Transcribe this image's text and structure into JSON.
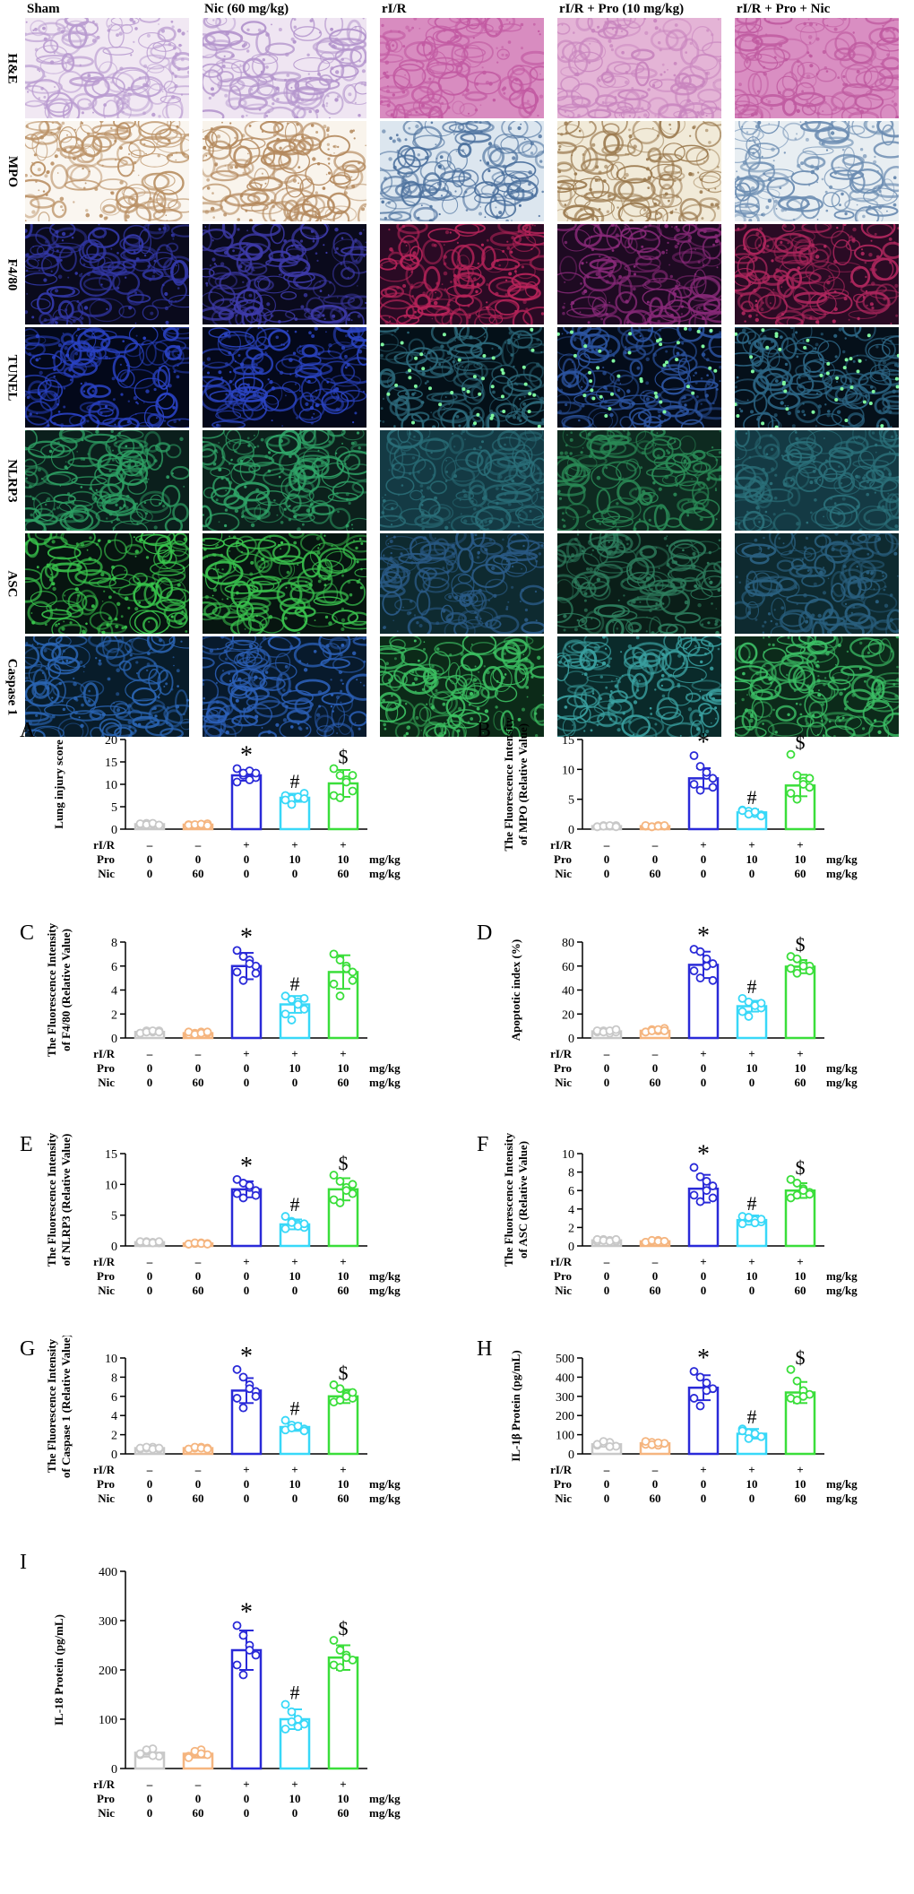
{
  "columns": [
    "Sham",
    "Nic (60 mg/kg)",
    "rI/R",
    "rI/R + Pro (10 mg/kg)",
    "rI/R + Pro + Nic"
  ],
  "rows": [
    {
      "label": "H&E",
      "bg": [
        "#f1e8f3",
        "#efe5f2",
        "#d88cc0",
        "#e4b4d6",
        "#d98ec2"
      ],
      "fg": [
        "#b99bd0",
        "#b394cc",
        "#c25aa2",
        "#c884be",
        "#bf5aa0"
      ]
    },
    {
      "label": "MPO",
      "bg": [
        "#faf6f0",
        "#f9f4ec",
        "#dce6ef",
        "#f1ead8",
        "#e8eef2"
      ],
      "fg": [
        "#b98f63",
        "#b3885c",
        "#4a6f9c",
        "#9b7a4f",
        "#6b8cb1"
      ]
    },
    {
      "label": "F4/80",
      "bg": [
        "#0a0a1c",
        "#0a0a1c",
        "#2a0a24",
        "#1e0a22",
        "#2a0b24"
      ],
      "fg": [
        "#3338a8",
        "#3d3aa8",
        "#b8245a",
        "#8a2a7a",
        "#b0275e"
      ]
    },
    {
      "label": "TUNEL",
      "bg": [
        "#03081a",
        "#04081a",
        "#041018",
        "#040c1a",
        "#05101a"
      ],
      "fg": [
        "#2a42c4",
        "#2b44c2",
        "#2d6a7c",
        "#2c54a0",
        "#2c6584"
      ]
    },
    {
      "label": "NLRP3",
      "bg": [
        "#0b1f1c",
        "#0c211c",
        "#143a44",
        "#0e2a20",
        "#143a44"
      ],
      "fg": [
        "#2ea064",
        "#30a468",
        "#2a6e78",
        "#2a8a56",
        "#2b707a"
      ]
    },
    {
      "label": "ASC",
      "bg": [
        "#071410",
        "#071510",
        "#0e2a30",
        "#0a1e18",
        "#0e2a30"
      ],
      "fg": [
        "#38c44c",
        "#3ac24e",
        "#2a5a86",
        "#2e7e5e",
        "#2a6080"
      ]
    },
    {
      "label": "Caspase 1",
      "bg": [
        "#081c2a",
        "#081a2c",
        "#0c2a18",
        "#0a2a2a",
        "#0c2a1a"
      ],
      "fg": [
        "#2a64b2",
        "#2c60b8",
        "#3cc062",
        "#3aa0a0",
        "#3cc066"
      ]
    }
  ],
  "colors": {
    "sham": "#c8c8c8",
    "nic": "#f5b57f",
    "rir": "#2a2ad8",
    "pro": "#38d8f8",
    "pronic": "#3ade3a"
  },
  "chart_data": [
    {
      "type": "bar",
      "letter": "A",
      "ylabel": "Lung injury score",
      "ylim": [
        0,
        20
      ],
      "ticks": [
        0,
        5,
        10,
        15,
        20
      ],
      "means": [
        1.1,
        1.0,
        12.0,
        7.0,
        10.2
      ],
      "err": [
        0.2,
        0.2,
        1.2,
        0.9,
        3.0
      ],
      "points": [
        [
          1.0,
          1.3,
          1.1,
          0.9,
          1.2,
          1.0,
          1.3,
          0.9
        ],
        [
          1.0,
          0.8,
          1.1,
          1.2,
          0.9,
          1.0,
          1.1,
          0.8
        ],
        [
          13.5,
          12.0,
          13.0,
          11.5,
          10.5,
          12.5,
          11.0,
          12.5
        ],
        [
          7.5,
          6.8,
          7.0,
          8.0,
          6.5,
          5.5,
          7.2,
          6.8
        ],
        [
          13.5,
          12.0,
          11.0,
          8.5,
          7.5,
          7.0,
          10.5,
          12.0
        ]
      ],
      "sig": [
        "",
        "",
        "*",
        "#",
        "$"
      ],
      "rows": [
        [
          "rI/R",
          "–",
          "–",
          "+",
          "+",
          "+",
          ""
        ],
        [
          "Pro",
          "0",
          "0",
          "0",
          "10",
          "10",
          "mg/kg"
        ],
        [
          "Nic",
          "0",
          "60",
          "0",
          "0",
          "60",
          "mg/kg"
        ]
      ]
    },
    {
      "type": "bar",
      "letter": "B",
      "ylabel": "The Fluorescence Intensity of MPO (Relative Value)",
      "ylim": [
        0,
        15
      ],
      "ticks": [
        0,
        5,
        10,
        15
      ],
      "means": [
        0.5,
        0.5,
        8.5,
        2.8,
        7.3
      ],
      "err": [
        0.15,
        0.15,
        1.7,
        0.5,
        1.8
      ],
      "points": [
        [
          0.4,
          0.6,
          0.5,
          0.6,
          0.4,
          0.5,
          0.6,
          0.4
        ],
        [
          0.5,
          0.4,
          0.6,
          0.5,
          0.6,
          0.4,
          0.5,
          0.6
        ],
        [
          12.3,
          10.5,
          9.0,
          8.5,
          7.5,
          6.5,
          9.5,
          7.0
        ],
        [
          3.2,
          3.0,
          2.6,
          2.4,
          3.1,
          2.5,
          2.9,
          2.2
        ],
        [
          12.5,
          9.0,
          8.0,
          7.0,
          6.0,
          5.0,
          7.5,
          8.5
        ]
      ],
      "sig": [
        "",
        "",
        "*",
        "#",
        "$"
      ],
      "rows": [
        [
          "rI/R",
          "–",
          "–",
          "+",
          "+",
          "+",
          ""
        ],
        [
          "Pro",
          "0",
          "0",
          "0",
          "10",
          "10",
          "mg/kg"
        ],
        [
          "Nic",
          "0",
          "60",
          "0",
          "0",
          "60",
          "mg/kg"
        ]
      ]
    },
    {
      "type": "bar",
      "letter": "C",
      "ylabel": "The Fluorescence Intensity of F4/80 (Relative Value)",
      "ylim": [
        0,
        8
      ],
      "ticks": [
        0,
        2,
        4,
        6,
        8
      ],
      "means": [
        0.5,
        0.4,
        6.0,
        2.8,
        5.5
      ],
      "err": [
        0.1,
        0.1,
        1.1,
        0.7,
        1.4
      ],
      "points": [
        [
          0.4,
          0.6,
          0.5,
          0.6,
          0.4,
          0.5,
          0.6,
          0.5
        ],
        [
          0.3,
          0.4,
          0.5,
          0.4,
          0.5,
          0.3,
          0.4,
          0.5
        ],
        [
          7.3,
          6.8,
          6.5,
          6.0,
          5.5,
          4.8,
          6.2,
          5.4
        ],
        [
          3.5,
          3.2,
          3.0,
          2.4,
          2.0,
          1.5,
          2.8,
          3.3
        ],
        [
          7.0,
          6.5,
          6.0,
          5.5,
          4.5,
          3.5,
          5.8,
          4.8
        ]
      ],
      "sig": [
        "",
        "",
        "*",
        "#",
        ""
      ],
      "rows": [
        [
          "rI/R",
          "–",
          "–",
          "+",
          "+",
          "+",
          ""
        ],
        [
          "Pro",
          "0",
          "0",
          "0",
          "10",
          "10",
          "mg/kg"
        ],
        [
          "Nic",
          "0",
          "60",
          "0",
          "0",
          "60",
          "mg/kg"
        ]
      ]
    },
    {
      "type": "bar",
      "letter": "D",
      "ylabel": "Apoptotic index (%)",
      "ylim": [
        0,
        80
      ],
      "ticks": [
        0,
        20,
        40,
        60,
        80
      ],
      "means": [
        5.5,
        6.0,
        61.0,
        26.5,
        59.5
      ],
      "err": [
        1.0,
        1.5,
        11.0,
        4.5,
        5.5
      ],
      "points": [
        [
          5,
          6,
          4,
          5,
          6,
          5,
          6,
          7
        ],
        [
          5,
          7,
          6,
          8,
          5,
          6,
          7,
          6
        ],
        [
          74,
          72,
          66,
          62,
          56,
          50,
          60,
          48
        ],
        [
          33,
          30,
          28,
          25,
          22,
          18,
          27,
          29
        ],
        [
          68,
          66,
          62,
          60,
          58,
          54,
          60,
          56
        ]
      ],
      "sig": [
        "",
        "",
        "*",
        "#",
        "$"
      ],
      "rows": [
        [
          "rI/R",
          "–",
          "–",
          "+",
          "+",
          "+",
          ""
        ],
        [
          "Pro",
          "0",
          "0",
          "0",
          "10",
          "10",
          "mg/kg"
        ],
        [
          "Nic",
          "0",
          "60",
          "0",
          "0",
          "60",
          "mg/kg"
        ]
      ]
    },
    {
      "type": "bar",
      "letter": "E",
      "ylabel": "The Fluorescence Intensity of NLRP3 (Relative Value)",
      "ylim": [
        0,
        15
      ],
      "ticks": [
        0,
        5,
        10,
        15
      ],
      "means": [
        0.6,
        0.4,
        9.2,
        3.5,
        9.2
      ],
      "err": [
        0.15,
        0.1,
        1.3,
        0.8,
        1.8
      ],
      "points": [
        [
          0.5,
          0.7,
          0.6,
          0.5,
          0.7,
          0.6,
          0.5,
          0.7
        ],
        [
          0.3,
          0.4,
          0.5,
          0.4,
          0.3,
          0.5,
          0.4,
          0.3
        ],
        [
          10.8,
          10.2,
          9.5,
          9.0,
          8.5,
          7.8,
          9.8,
          8.2
        ],
        [
          4.8,
          4.0,
          3.5,
          3.0,
          2.8,
          3.8,
          3.2,
          3.6
        ],
        [
          11.5,
          10.5,
          9.5,
          8.5,
          7.5,
          7.0,
          9.0,
          10.0
        ]
      ],
      "sig": [
        "",
        "",
        "*",
        "#",
        "$"
      ],
      "rows": [
        [
          "rI/R",
          "–",
          "–",
          "+",
          "+",
          "+",
          ""
        ],
        [
          "Pro",
          "0",
          "0",
          "0",
          "10",
          "10",
          "mg/kg"
        ],
        [
          "Nic",
          "0",
          "60",
          "0",
          "0",
          "60",
          "mg/kg"
        ]
      ]
    },
    {
      "type": "bar",
      "letter": "F",
      "ylabel": "The Fluorescence Intensity of ASC (Relative Value)",
      "ylim": [
        0,
        10
      ],
      "ticks": [
        0,
        2,
        4,
        6,
        8,
        10
      ],
      "means": [
        0.6,
        0.5,
        6.2,
        2.8,
        6.0
      ],
      "err": [
        0.1,
        0.1,
        1.5,
        0.5,
        0.8
      ],
      "points": [
        [
          0.5,
          0.7,
          0.6,
          0.5,
          0.7,
          0.6,
          0.5,
          0.7
        ],
        [
          0.4,
          0.5,
          0.6,
          0.5,
          0.4,
          0.6,
          0.5,
          0.5
        ],
        [
          8.5,
          7.5,
          7.0,
          6.5,
          5.5,
          4.8,
          6.0,
          5.2
        ],
        [
          3.2,
          3.0,
          2.8,
          2.6,
          2.4,
          3.1,
          2.5,
          2.9
        ],
        [
          7.2,
          6.8,
          6.2,
          5.8,
          5.2,
          5.5,
          6.0,
          5.6
        ]
      ],
      "sig": [
        "",
        "",
        "*",
        "#",
        "$"
      ],
      "rows": [
        [
          "rI/R",
          "–",
          "–",
          "+",
          "+",
          "+",
          ""
        ],
        [
          "Pro",
          "0",
          "0",
          "0",
          "10",
          "10",
          "mg/kg"
        ],
        [
          "Nic",
          "0",
          "60",
          "0",
          "0",
          "60",
          "mg/kg"
        ]
      ]
    },
    {
      "type": "bar",
      "letter": "G",
      "ylabel": "The Fluorescence Intensity of Caspase 1 (Relative Value)",
      "ylim": [
        0,
        10
      ],
      "ticks": [
        0,
        2,
        4,
        6,
        8,
        10
      ],
      "means": [
        0.6,
        0.6,
        6.6,
        2.8,
        6.0
      ],
      "err": [
        0.1,
        0.1,
        1.3,
        0.4,
        0.7
      ],
      "points": [
        [
          0.5,
          0.6,
          0.7,
          0.5,
          0.6,
          0.7,
          0.5,
          0.6
        ],
        [
          0.5,
          0.6,
          0.7,
          0.6,
          0.5,
          0.7,
          0.6,
          0.5
        ],
        [
          8.8,
          8.0,
          7.2,
          6.5,
          5.8,
          4.8,
          6.8,
          6.0
        ],
        [
          3.5,
          3.0,
          2.8,
          2.6,
          2.5,
          2.7,
          2.9,
          2.4
        ],
        [
          7.2,
          6.8,
          6.2,
          5.8,
          5.4,
          5.6,
          6.0,
          6.4
        ]
      ],
      "sig": [
        "",
        "",
        "*",
        "#",
        "$"
      ],
      "rows": [
        [
          "rI/R",
          "–",
          "–",
          "+",
          "+",
          "+",
          ""
        ],
        [
          "Pro",
          "0",
          "0",
          "0",
          "10",
          "10",
          "mg/kg"
        ],
        [
          "Nic",
          "0",
          "60",
          "0",
          "0",
          "60",
          "mg/kg"
        ]
      ]
    },
    {
      "type": "bar",
      "letter": "H",
      "ylabel": "IL-1β Protein (pg/mL)",
      "ylim": [
        0,
        500
      ],
      "ticks": [
        0,
        100,
        200,
        300,
        400,
        500
      ],
      "means": [
        50,
        55,
        345,
        105,
        320
      ],
      "err": [
        12,
        12,
        65,
        25,
        55
      ],
      "points": [
        [
          45,
          55,
          60,
          40,
          50,
          65,
          38
        ],
        [
          50,
          60,
          45,
          55,
          65,
          48,
          58
        ],
        [
          430,
          400,
          370,
          340,
          290,
          250,
          330
        ],
        [
          130,
          110,
          100,
          90,
          120,
          80,
          105
        ],
        [
          440,
          380,
          330,
          310,
          290,
          280,
          300
        ]
      ],
      "sig": [
        "",
        "",
        "*",
        "#",
        "$"
      ],
      "rows": [
        [
          "rI/R",
          "–",
          "–",
          "+",
          "+",
          "+",
          ""
        ],
        [
          "Pro",
          "0",
          "0",
          "0",
          "10",
          "10",
          "mg/kg"
        ],
        [
          "Nic",
          "0",
          "60",
          "0",
          "0",
          "60",
          "mg/kg"
        ]
      ]
    },
    {
      "type": "bar",
      "letter": "I",
      "ylabel": "IL-18 Protein (pg/mL)",
      "ylim": [
        0,
        400
      ],
      "ticks": [
        0,
        100,
        200,
        300,
        400
      ],
      "means": [
        32,
        30,
        240,
        100,
        225
      ],
      "err": [
        8,
        8,
        40,
        20,
        25
      ],
      "points": [
        [
          28,
          35,
          40,
          25,
          30,
          38,
          26
        ],
        [
          25,
          32,
          38,
          28,
          22,
          35,
          30
        ],
        [
          290,
          270,
          250,
          230,
          210,
          190,
          240
        ],
        [
          130,
          115,
          100,
          90,
          80,
          95,
          85
        ],
        [
          260,
          240,
          230,
          220,
          210,
          205,
          225
        ]
      ],
      "sig": [
        "",
        "",
        "*",
        "#",
        "$"
      ],
      "rows": [
        [
          "rI/R",
          "–",
          "–",
          "+",
          "+",
          "+",
          ""
        ],
        [
          "Pro",
          "0",
          "0",
          "0",
          "10",
          "10",
          "mg/kg"
        ],
        [
          "Nic",
          "0",
          "60",
          "0",
          "0",
          "60",
          "mg/kg"
        ]
      ]
    }
  ]
}
